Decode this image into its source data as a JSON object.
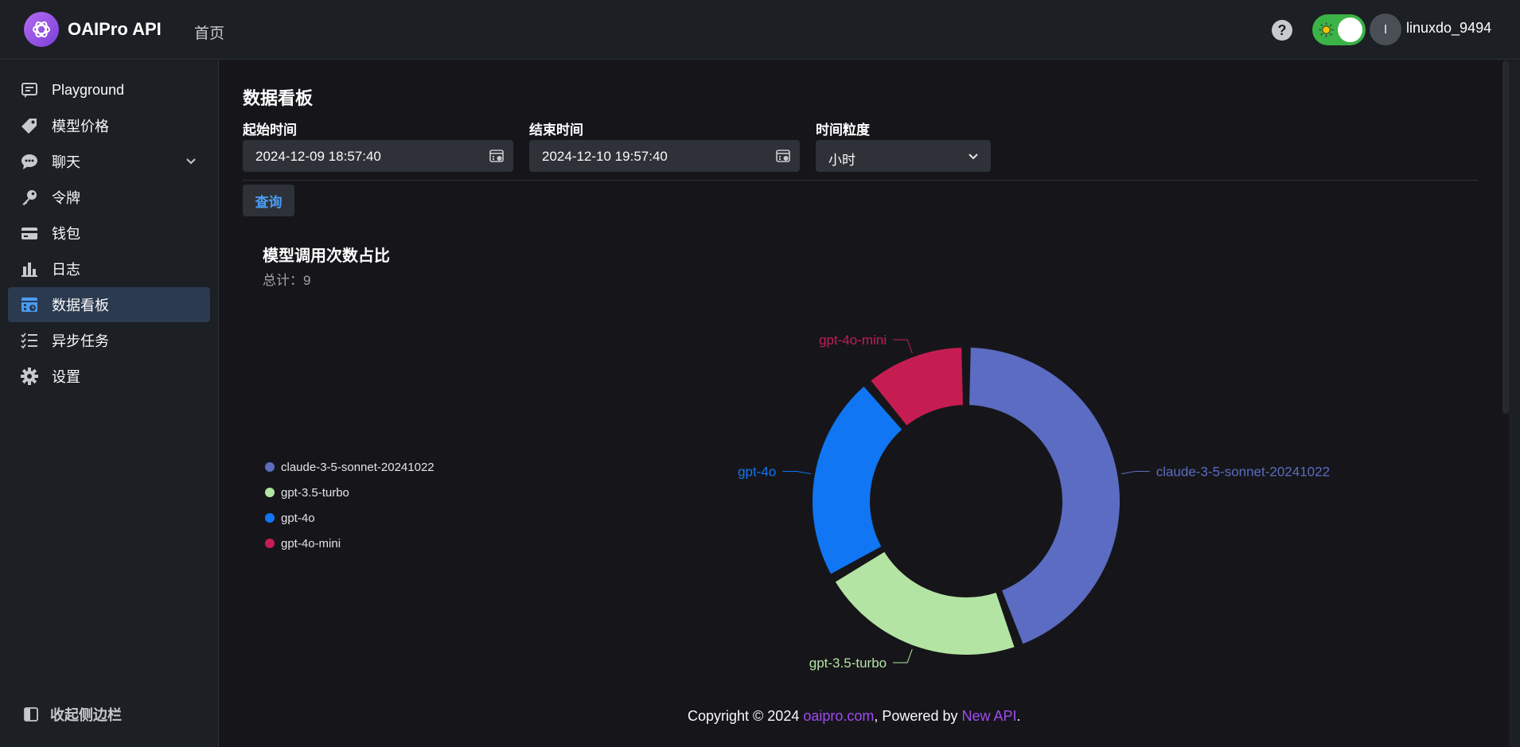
{
  "header": {
    "app_title": "OAIPro API",
    "nav_home": "首页",
    "help_glyph": "?",
    "avatar_initial": "l",
    "username": "linuxdo_9494"
  },
  "sidebar": {
    "items": [
      {
        "label": "Playground",
        "icon": "chat-icon"
      },
      {
        "label": "模型价格",
        "icon": "tag-icon"
      },
      {
        "label": "聊天",
        "icon": "chat-bubble-icon"
      },
      {
        "label": "令牌",
        "icon": "key-icon"
      },
      {
        "label": "钱包",
        "icon": "wallet-icon"
      },
      {
        "label": "日志",
        "icon": "bar-chart-icon"
      },
      {
        "label": "数据看板",
        "icon": "dashboard-icon",
        "active": true
      },
      {
        "label": "异步任务",
        "icon": "task-list-icon"
      },
      {
        "label": "设置",
        "icon": "gear-icon"
      }
    ],
    "collapse_label": "收起侧边栏"
  },
  "main": {
    "title": "数据看板",
    "start_label": "起始时间",
    "start_value": "2024-12-09 18:57:40",
    "end_label": "结束时间",
    "end_value": "2024-12-10 19:57:40",
    "granularity_label": "时间粒度",
    "granularity_value": "小时",
    "query_label": "查询"
  },
  "chart_data": {
    "type": "pie",
    "title": "模型调用次数占比",
    "subtitle": "总计：9",
    "categories": [
      "claude-3-5-sonnet-20241022",
      "gpt-3.5-turbo",
      "gpt-4o",
      "gpt-4o-mini"
    ],
    "values": [
      4,
      2,
      2,
      1
    ],
    "colors": [
      "#5b6cc2",
      "#b4e4a3",
      "#1076f3",
      "#c51d52"
    ],
    "donut": true,
    "legend_position": "left"
  },
  "footer": {
    "prefix": "Copyright © 2024 ",
    "link1": "oaipro.com",
    "middle": ", Powered by ",
    "link2": "New API",
    "suffix": "."
  }
}
